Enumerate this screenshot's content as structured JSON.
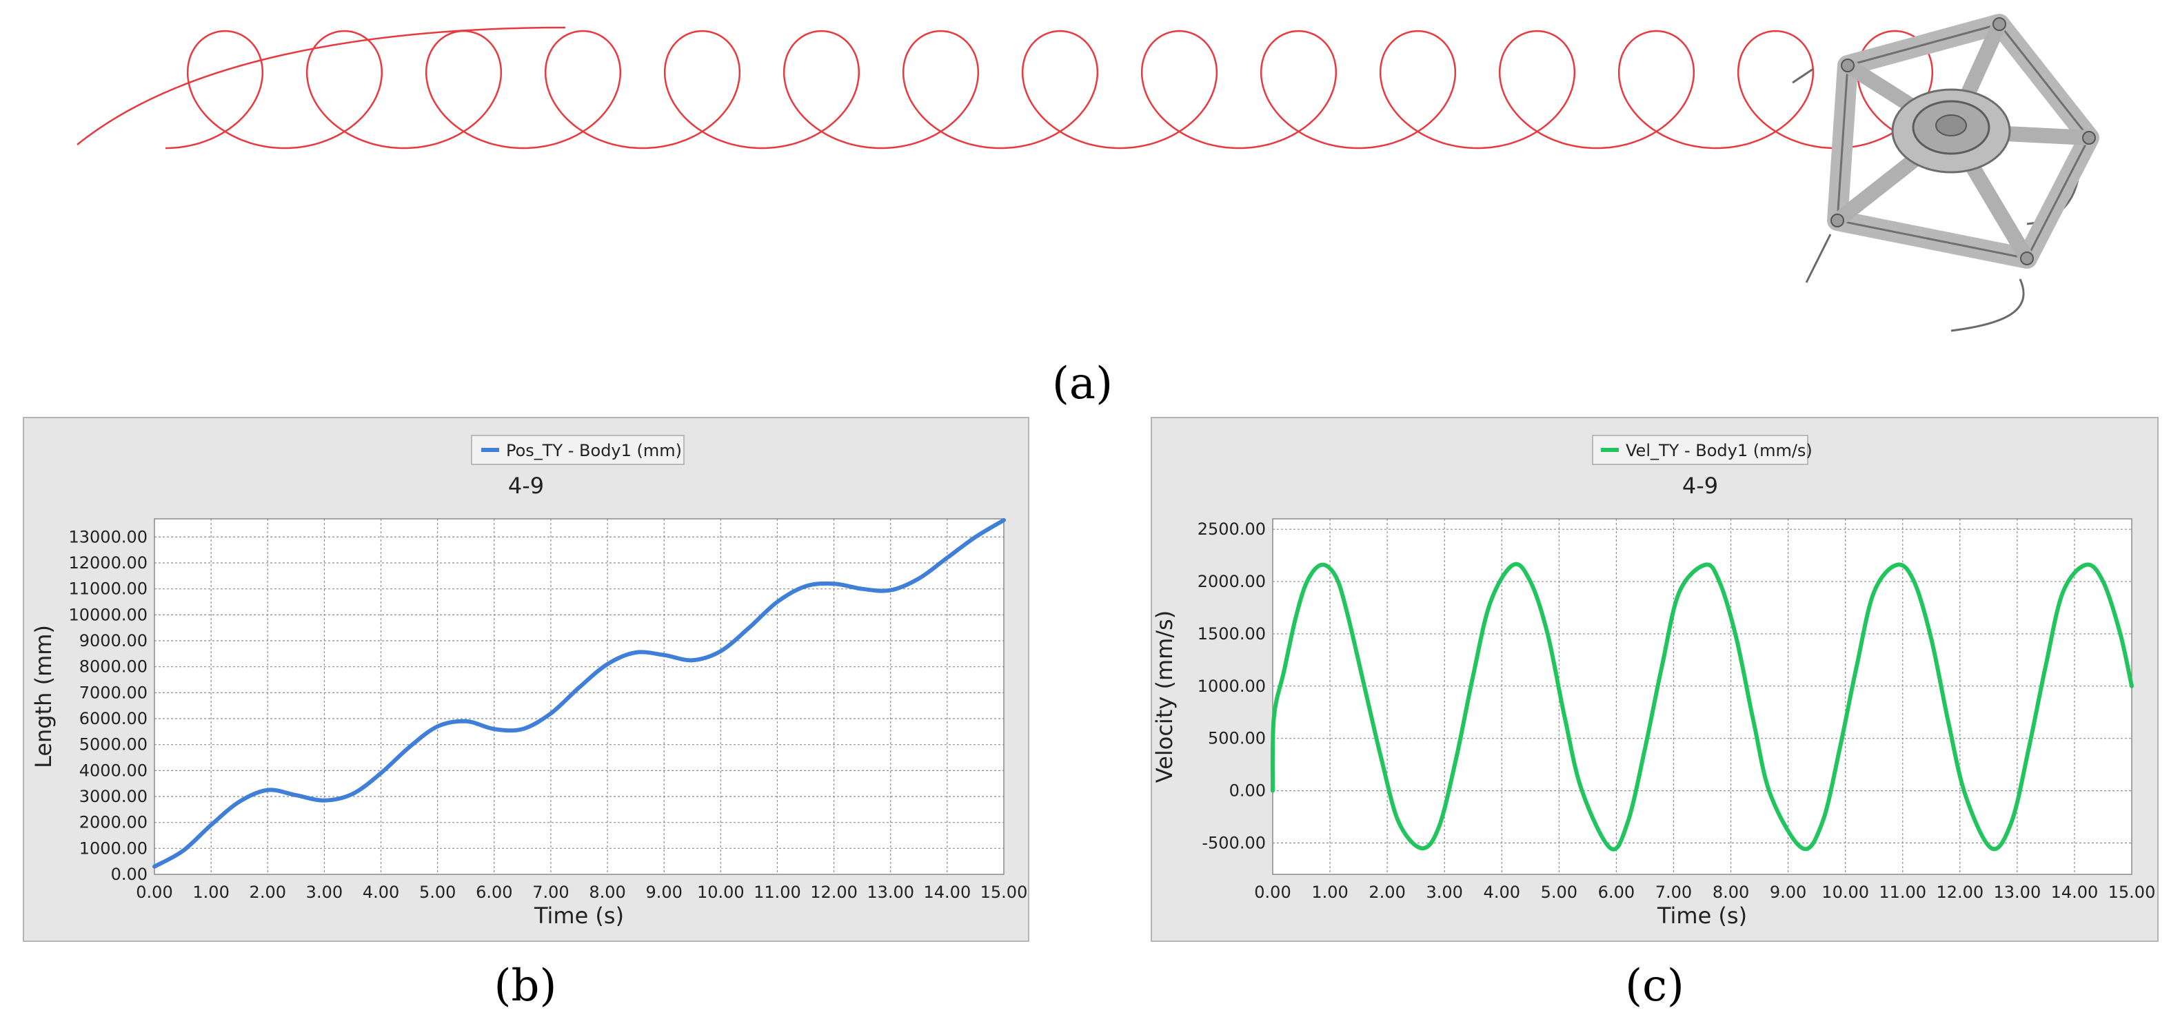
{
  "panels": {
    "a": "(a)",
    "b": "(b)",
    "c": "(c)"
  },
  "chart_data": [
    {
      "type": "line",
      "panel": "b",
      "title": "4-9",
      "legend": {
        "label": "Pos_TY - Body1 (mm)",
        "placement": "top-center"
      },
      "xlabel": "Time (s)",
      "ylabel": "Length (mm)",
      "xlim": [
        0,
        15
      ],
      "ylim": [
        0,
        13700
      ],
      "grid": true,
      "color": "#3f7fd8",
      "xticks": [
        "0.00",
        "1.00",
        "2.00",
        "3.00",
        "4.00",
        "5.00",
        "6.00",
        "7.00",
        "8.00",
        "9.00",
        "10.00",
        "11.00",
        "12.00",
        "13.00",
        "14.00",
        "15.00"
      ],
      "yticks": [
        "0.00",
        "1000.00",
        "2000.00",
        "3000.00",
        "4000.00",
        "5000.00",
        "6000.00",
        "7000.00",
        "8000.00",
        "9000.00",
        "10000.00",
        "11000.00",
        "12000.00",
        "13000.00"
      ],
      "series": [
        {
          "name": "Pos_TY - Body1 (mm)",
          "x": [
            0.0,
            0.5,
            1.0,
            1.5,
            2.0,
            2.5,
            3.0,
            3.5,
            4.0,
            4.5,
            5.0,
            5.5,
            6.0,
            6.5,
            7.0,
            7.5,
            8.0,
            8.5,
            9.0,
            9.5,
            10.0,
            10.5,
            11.0,
            11.5,
            12.0,
            12.5,
            13.0,
            13.5,
            14.0,
            14.5,
            15.0
          ],
          "y": [
            300,
            900,
            1900,
            2800,
            3250,
            3050,
            2850,
            3100,
            3900,
            4900,
            5700,
            5900,
            5600,
            5600,
            6200,
            7200,
            8100,
            8550,
            8450,
            8250,
            8600,
            9500,
            10500,
            11100,
            11200,
            11000,
            10950,
            11400,
            12200,
            13000,
            13650
          ]
        }
      ]
    },
    {
      "type": "line",
      "panel": "c",
      "title": "4-9",
      "legend": {
        "label": "Vel_TY - Body1 (mm/s)",
        "placement": "top-center"
      },
      "xlabel": "Time (s)",
      "ylabel": "Velocity (mm/s)",
      "xlim": [
        0,
        15
      ],
      "ylim": [
        -800,
        2600
      ],
      "grid": true,
      "color": "#21c45d",
      "xticks": [
        "0.00",
        "1.00",
        "2.00",
        "3.00",
        "4.00",
        "5.00",
        "6.00",
        "7.00",
        "8.00",
        "9.00",
        "10.00",
        "11.00",
        "12.00",
        "13.00",
        "14.00",
        "15.00"
      ],
      "yticks": [
        "-500.00",
        "0.00",
        "500.00",
        "1000.00",
        "1500.00",
        "2000.00",
        "2500.00"
      ],
      "series": [
        {
          "name": "Vel_TY - Body1 (mm/s)",
          "x": [
            0.0,
            0.02,
            0.2,
            0.4,
            0.6,
            0.85,
            1.1,
            1.3,
            1.6,
            1.9,
            2.2,
            2.6,
            2.9,
            3.2,
            3.5,
            3.8,
            4.2,
            4.5,
            4.8,
            5.1,
            5.4,
            5.9,
            6.2,
            6.5,
            6.8,
            7.1,
            7.55,
            7.8,
            8.1,
            8.4,
            8.7,
            9.25,
            9.6,
            9.9,
            10.2,
            10.5,
            10.9,
            11.2,
            11.5,
            11.8,
            12.1,
            12.55,
            12.9,
            13.2,
            13.5,
            13.8,
            14.2,
            14.5,
            14.8,
            15.0
          ],
          "y": [
            0,
            700,
            1150,
            1650,
            2000,
            2160,
            2050,
            1700,
            1000,
            300,
            -300,
            -550,
            -350,
            300,
            1100,
            1800,
            2160,
            2000,
            1500,
            700,
            0,
            -550,
            -300,
            400,
            1200,
            1900,
            2160,
            2000,
            1450,
            650,
            -50,
            -550,
            -300,
            400,
            1200,
            1900,
            2160,
            2000,
            1450,
            650,
            -50,
            -550,
            -300,
            400,
            1200,
            1900,
            2160,
            2000,
            1500,
            1000
          ]
        }
      ]
    }
  ]
}
